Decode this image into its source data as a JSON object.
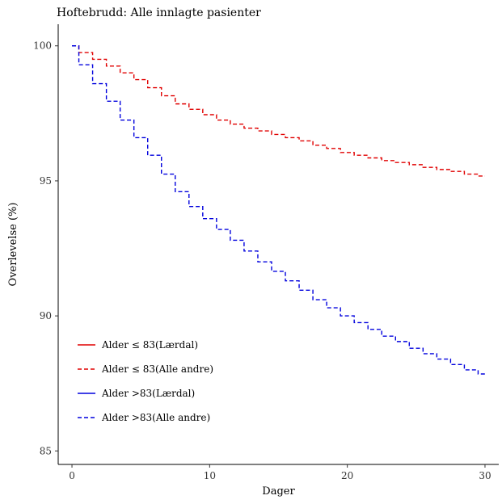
{
  "chart_data": {
    "type": "line",
    "title": "Hoftebrudd: Alle innlagte pasienter",
    "xlabel": "Dager",
    "ylabel": "Overlevelse (%)",
    "xlim": [
      -1,
      31
    ],
    "ylim": [
      84.5,
      100.8
    ],
    "xticks": [
      0,
      10,
      20,
      30
    ],
    "yticks": [
      85,
      90,
      95,
      100
    ],
    "grid": false,
    "legend_position": "bottom-left",
    "legend": [
      {
        "label": "Alder ≤ 83(Lærdal)",
        "color": "#e00000",
        "dash": "solid"
      },
      {
        "label": "Alder ≤ 83(Alle andre)",
        "color": "#e00000",
        "dash": "dashed"
      },
      {
        "label": "Alder >83(Lærdal)",
        "color": "#0000dd",
        "dash": "solid"
      },
      {
        "label": "Alder >83(Alle andre)",
        "color": "#0000dd",
        "dash": "dashed"
      }
    ],
    "series": [
      {
        "name": "Alder ≤ 83(Alle andre)",
        "color": "#e00000",
        "dash": "dashed",
        "x": [
          0,
          1,
          2,
          3,
          4,
          5,
          6,
          7,
          8,
          9,
          10,
          11,
          12,
          13,
          14,
          15,
          16,
          17,
          18,
          19,
          20,
          21,
          22,
          23,
          24,
          25,
          26,
          27,
          28,
          29,
          30
        ],
        "y": [
          100,
          99.75,
          99.5,
          99.25,
          99.0,
          98.75,
          98.45,
          98.15,
          97.85,
          97.65,
          97.45,
          97.25,
          97.1,
          96.95,
          96.85,
          96.72,
          96.6,
          96.48,
          96.32,
          96.2,
          96.05,
          95.95,
          95.85,
          95.75,
          95.68,
          95.6,
          95.5,
          95.42,
          95.35,
          95.25,
          95.18
        ]
      },
      {
        "name": "Alder >83(Alle andre)",
        "color": "#0000dd",
        "dash": "dashed",
        "x": [
          0,
          1,
          2,
          3,
          4,
          5,
          6,
          7,
          8,
          9,
          10,
          11,
          12,
          13,
          14,
          15,
          16,
          17,
          18,
          19,
          20,
          21,
          22,
          23,
          24,
          25,
          26,
          27,
          28,
          29,
          30
        ],
        "y": [
          100,
          99.3,
          98.6,
          97.95,
          97.25,
          96.6,
          95.95,
          95.25,
          94.6,
          94.05,
          93.6,
          93.2,
          92.8,
          92.4,
          92.0,
          91.65,
          91.3,
          90.95,
          90.6,
          90.3,
          90.0,
          89.75,
          89.5,
          89.25,
          89.05,
          88.8,
          88.6,
          88.4,
          88.2,
          88.0,
          87.85
        ]
      }
    ]
  }
}
